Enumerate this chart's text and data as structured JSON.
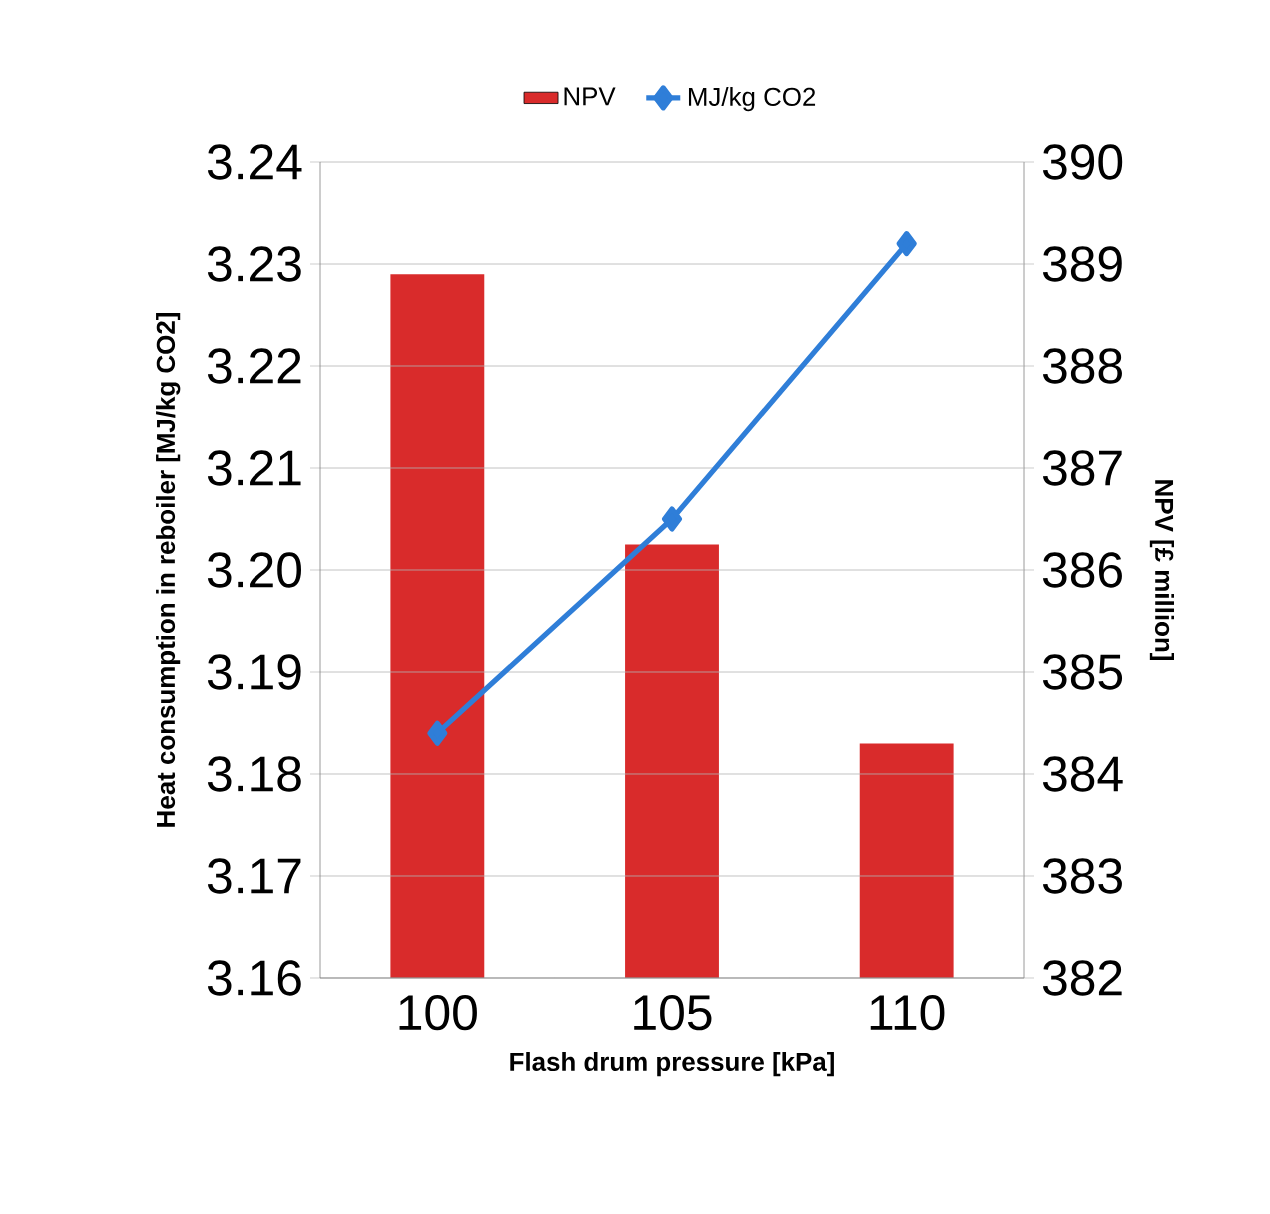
{
  "chart_data": {
    "type": "bar",
    "xlabel": "Flash drum pressure [kPa]",
    "ylabel": "Heat consumption in reboiler [MJ/kg CO2]",
    "y2label": "NPV [£ million]",
    "categories": [
      "100",
      "105",
      "110"
    ],
    "series": [
      {
        "name": "NPV",
        "axis": "y2",
        "color": "#d92b2b",
        "values": [
          388.9,
          386.25,
          384.3
        ]
      },
      {
        "name": "MJ/kg CO2",
        "type": "line",
        "axis": "y",
        "color": "#2f7ed8",
        "marker": "diamond",
        "values": [
          3.184,
          3.205,
          3.232
        ]
      }
    ],
    "ylim": [
      3.16,
      3.24
    ],
    "yticks": [
      3.16,
      3.17,
      3.18,
      3.19,
      {
        "value": 3.2,
        "label": "3.20"
      },
      3.21,
      3.22,
      3.23,
      3.24
    ],
    "y2lim": [
      382,
      390
    ],
    "y2ticks": [
      382,
      383,
      384,
      385,
      386,
      387,
      388,
      389,
      390
    ],
    "grid": "y",
    "legend": "top"
  }
}
